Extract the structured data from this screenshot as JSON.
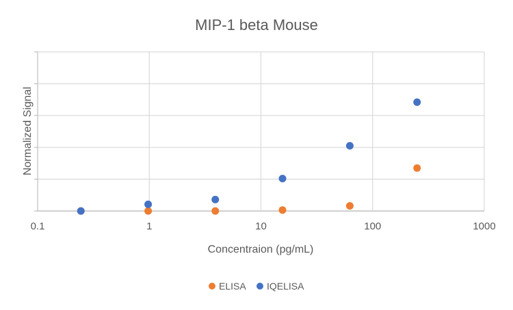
{
  "chart_data": {
    "type": "scatter",
    "title": "MIP-1 beta Mouse",
    "xlabel": "Concentraion (pg/mL)",
    "ylabel": "Normalized Signal",
    "xscale": "log",
    "xlim": [
      0.1,
      1000
    ],
    "xticks": [
      "0.1",
      "1",
      "10",
      "100",
      "1000"
    ],
    "xtick_values": [
      0.1,
      1,
      10,
      100,
      1000
    ],
    "ylim": [
      0,
      5
    ],
    "ygrid_count": 5,
    "grid": true,
    "legend_position": "bottom",
    "series": [
      {
        "name": "ELISA",
        "color": "#ED7D31",
        "x": [
          0.244,
          0.977,
          3.9,
          15.6,
          62.5,
          250
        ],
        "y": [
          0,
          0,
          0,
          0.03,
          0.16,
          1.35
        ]
      },
      {
        "name": "IQELISA",
        "color": "#4472C4",
        "x": [
          0.244,
          0.977,
          3.9,
          15.6,
          62.5,
          250
        ],
        "y": [
          0,
          0.21,
          0.36,
          1.02,
          2.05,
          3.42
        ]
      }
    ]
  }
}
